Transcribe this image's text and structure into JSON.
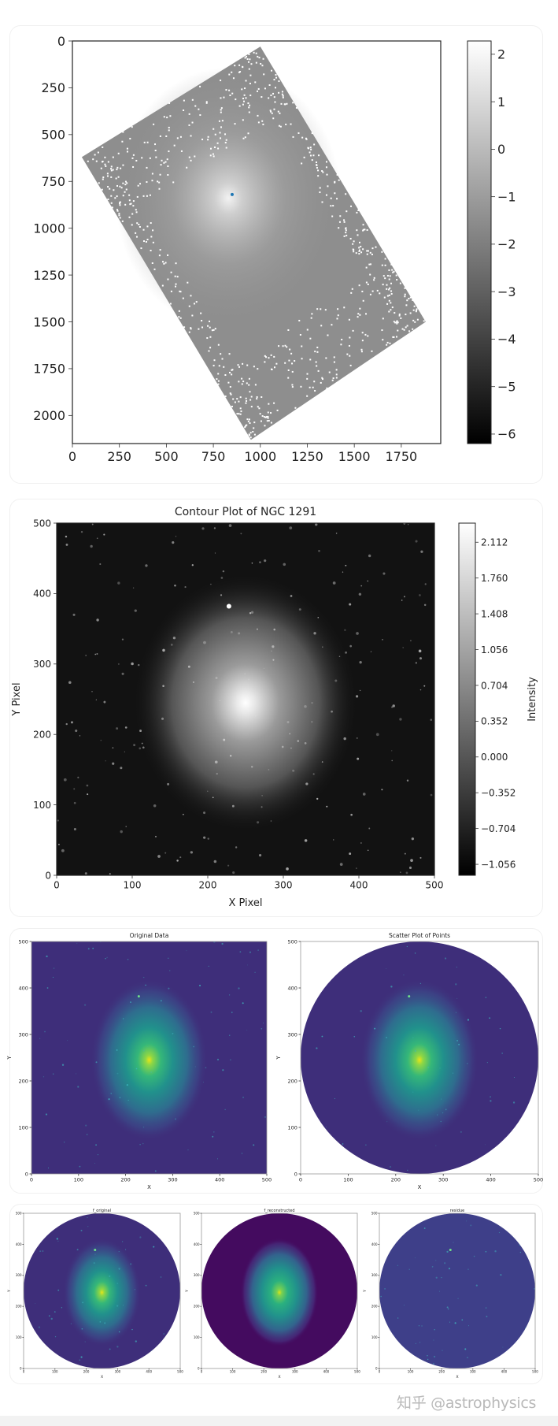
{
  "page": {
    "watermark": "知乎 @astrophysics"
  },
  "chart_data": [
    {
      "id": "p1",
      "type": "heatmap",
      "title": "",
      "xlabel": "",
      "ylabel": "",
      "xlim": [
        0,
        1960
      ],
      "ylim": [
        2150,
        0
      ],
      "xticks": [
        0,
        250,
        500,
        750,
        1000,
        1250,
        1500,
        1750
      ],
      "xtick_labels": [
        "0",
        "250",
        "500",
        "750",
        "1000",
        "1250",
        "1500",
        "1750"
      ],
      "yticks": [
        0,
        250,
        500,
        750,
        1000,
        1250,
        1500,
        1750,
        2000
      ],
      "ytick_labels": [
        "0",
        "250",
        "500",
        "750",
        "1000",
        "1250",
        "1500",
        "1750",
        "2000"
      ],
      "render": "footprint",
      "footprint_corners": [
        [
          1000,
          30
        ],
        [
          1880,
          1500
        ],
        [
          950,
          2130
        ],
        [
          50,
          620
        ]
      ],
      "galaxy": {
        "center": [
          830,
          840
        ],
        "halo_radius": [
          600,
          700
        ]
      },
      "markers": [
        {
          "x": 850,
          "y": 820,
          "color": "#1f77b4"
        }
      ],
      "colorbar": {
        "label": "",
        "colormap": "gray",
        "range": [
          -6.2,
          2.28
        ],
        "ticks": [
          2,
          1,
          0,
          -1,
          -2,
          -3,
          -4,
          -5,
          -6
        ],
        "tick_labels": [
          "2",
          "1",
          "0",
          "−1",
          "−2",
          "−3",
          "−4",
          "−5",
          "−6"
        ]
      }
    },
    {
      "id": "p2",
      "type": "heatmap",
      "title": "Contour Plot of NGC 1291",
      "xlabel": "X Pixel",
      "ylabel": "Y Pixel",
      "xlim": [
        0,
        500
      ],
      "ylim": [
        0,
        500
      ],
      "xticks": [
        0,
        100,
        200,
        300,
        400,
        500
      ],
      "xtick_labels": [
        "0",
        "100",
        "200",
        "300",
        "400",
        "500"
      ],
      "yticks": [
        0,
        100,
        200,
        300,
        400,
        500
      ],
      "ytick_labels": [
        "0",
        "100",
        "200",
        "300",
        "400",
        "500"
      ],
      "render": "galaxy-gray",
      "galaxy": {
        "center": [
          250,
          245
        ],
        "halo_radius": [
          150,
          185
        ],
        "bright_star": [
          228,
          382
        ]
      },
      "colorbar": {
        "label": "Intensity",
        "colormap": "gray",
        "range": [
          -1.164,
          2.3
        ],
        "ticks": [
          2.112,
          1.76,
          1.408,
          1.056,
          0.704,
          0.352,
          0.0,
          -0.352,
          -0.704,
          -1.056
        ],
        "tick_labels": [
          "2.112",
          "1.760",
          "1.408",
          "1.056",
          "0.704",
          "0.352",
          "0.000",
          "−0.352",
          "−0.704",
          "−1.056"
        ]
      }
    },
    {
      "id": "p3",
      "type": "heatmap",
      "title": "Original Data",
      "xlabel": "X",
      "ylabel": "Y",
      "xlim": [
        0,
        500
      ],
      "ylim": [
        0,
        500
      ],
      "xticks": [
        0,
        100,
        200,
        300,
        400,
        500
      ],
      "xtick_labels": [
        "0",
        "100",
        "200",
        "300",
        "400",
        "500"
      ],
      "yticks": [
        0,
        100,
        200,
        300,
        400,
        500
      ],
      "ytick_labels": [
        "0",
        "100",
        "200",
        "300",
        "400",
        "500"
      ],
      "render": "galaxy-viridis",
      "mask": "none",
      "galaxy": {
        "center": [
          250,
          245
        ],
        "halo_radius": [
          125,
          175
        ],
        "bright_star": [
          228,
          382
        ]
      }
    },
    {
      "id": "p4",
      "type": "scatter",
      "title": "Scatter Plot of Points",
      "xlabel": "X",
      "ylabel": "Y",
      "xlim": [
        0,
        500
      ],
      "ylim": [
        0,
        500
      ],
      "xticks": [
        0,
        100,
        200,
        300,
        400,
        500
      ],
      "xtick_labels": [
        "0",
        "100",
        "200",
        "300",
        "400",
        "500"
      ],
      "yticks": [
        0,
        100,
        200,
        300,
        400,
        500
      ],
      "ytick_labels": [
        "0",
        "100",
        "200",
        "300",
        "400",
        "500"
      ],
      "render": "galaxy-viridis",
      "mask": "circle",
      "mask_circle": {
        "center": [
          250,
          250
        ],
        "radius": 250
      },
      "galaxy": {
        "center": [
          250,
          245
        ],
        "halo_radius": [
          125,
          175
        ],
        "bright_star": [
          228,
          382
        ]
      }
    },
    {
      "id": "p5",
      "type": "heatmap",
      "title": "f_original",
      "xlabel": "X",
      "ylabel": "Y",
      "xlim": [
        0,
        500
      ],
      "ylim": [
        0,
        500
      ],
      "xticks": [
        0,
        100,
        200,
        300,
        400,
        500
      ],
      "xtick_labels": [
        "0",
        "100",
        "200",
        "300",
        "400",
        "500"
      ],
      "yticks": [
        0,
        100,
        200,
        300,
        400,
        500
      ],
      "ytick_labels": [
        "0",
        "100",
        "200",
        "300",
        "400",
        "500"
      ],
      "render": "galaxy-viridis",
      "mask": "circle",
      "mask_circle": {
        "center": [
          250,
          250
        ],
        "radius": 250
      },
      "galaxy": {
        "center": [
          250,
          245
        ],
        "halo_radius": [
          125,
          175
        ],
        "bright_star": [
          228,
          382
        ]
      }
    },
    {
      "id": "p6",
      "type": "heatmap",
      "title": "f_reconstructed",
      "xlabel": "X",
      "ylabel": "Y",
      "xlim": [
        0,
        500
      ],
      "ylim": [
        0,
        500
      ],
      "xticks": [
        0,
        100,
        200,
        300,
        400,
        500
      ],
      "xtick_labels": [
        "0",
        "100",
        "200",
        "300",
        "400",
        "500"
      ],
      "yticks": [
        0,
        100,
        200,
        300,
        400,
        500
      ],
      "ytick_labels": [
        "0",
        "100",
        "200",
        "300",
        "400",
        "500"
      ],
      "render": "galaxy-viridis-smooth",
      "mask": "circle",
      "mask_circle": {
        "center": [
          250,
          250
        ],
        "radius": 250
      },
      "galaxy": {
        "center": [
          250,
          245
        ],
        "halo_radius": [
          125,
          175
        ]
      }
    },
    {
      "id": "p7",
      "type": "heatmap",
      "title": "residue",
      "xlabel": "X",
      "ylabel": "Y",
      "xlim": [
        0,
        500
      ],
      "ylim": [
        0,
        500
      ],
      "xticks": [
        0,
        100,
        200,
        300,
        400,
        500
      ],
      "xtick_labels": [
        "0",
        "100",
        "200",
        "300",
        "400",
        "500"
      ],
      "yticks": [
        0,
        100,
        200,
        300,
        400,
        500
      ],
      "ytick_labels": [
        "0",
        "100",
        "200",
        "300",
        "400",
        "500"
      ],
      "render": "residue",
      "mask": "circle",
      "mask_circle": {
        "center": [
          250,
          250
        ],
        "radius": 250
      },
      "galaxy": {
        "center": [
          250,
          245
        ],
        "bright_star": [
          228,
          382
        ]
      }
    }
  ]
}
